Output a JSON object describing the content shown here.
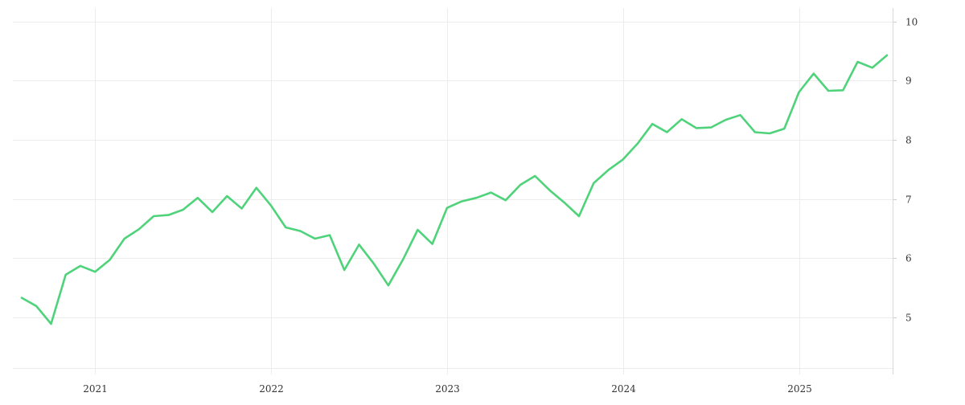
{
  "chart_data": {
    "type": "line",
    "title": "",
    "xlabel": "",
    "ylabel": "",
    "x_tick_labels": [
      "2021",
      "2022",
      "2023",
      "2024",
      "2025"
    ],
    "y_tick_labels": [
      "5",
      "6",
      "7",
      "8",
      "9",
      "10"
    ],
    "y_ticks": [
      5,
      6,
      7,
      8,
      9,
      10
    ],
    "ylim": [
      4.15,
      10.1
    ],
    "xlim": [
      "2020-08",
      "2025-07"
    ],
    "y_axis_side": "right",
    "grid": true,
    "legend": "none",
    "series": [
      {
        "color": "#4fd37a",
        "points": [
          [
            "2020-08",
            5.33
          ],
          [
            "2020-09",
            5.19
          ],
          [
            "2020-10",
            4.89
          ],
          [
            "2020-11",
            5.72
          ],
          [
            "2020-12",
            5.87
          ],
          [
            "2021-01",
            5.77
          ],
          [
            "2021-02",
            5.97
          ],
          [
            "2021-03",
            6.33
          ],
          [
            "2021-04",
            6.49
          ],
          [
            "2021-05",
            6.71
          ],
          [
            "2021-06",
            6.73
          ],
          [
            "2021-07",
            6.82
          ],
          [
            "2021-08",
            7.02
          ],
          [
            "2021-09",
            6.78
          ],
          [
            "2021-10",
            7.05
          ],
          [
            "2021-11",
            6.84
          ],
          [
            "2021-12",
            7.19
          ],
          [
            "2022-01",
            6.89
          ],
          [
            "2022-02",
            6.52
          ],
          [
            "2022-03",
            6.46
          ],
          [
            "2022-04",
            6.33
          ],
          [
            "2022-05",
            6.39
          ],
          [
            "2022-06",
            5.8
          ],
          [
            "2022-07",
            6.23
          ],
          [
            "2022-08",
            5.91
          ],
          [
            "2022-09",
            5.54
          ],
          [
            "2022-10",
            5.98
          ],
          [
            "2022-11",
            6.48
          ],
          [
            "2022-12",
            6.24
          ],
          [
            "2023-01",
            6.85
          ],
          [
            "2023-02",
            6.96
          ],
          [
            "2023-03",
            7.02
          ],
          [
            "2023-04",
            7.11
          ],
          [
            "2023-05",
            6.98
          ],
          [
            "2023-06",
            7.24
          ],
          [
            "2023-07",
            7.39
          ],
          [
            "2023-08",
            7.15
          ],
          [
            "2023-09",
            6.94
          ],
          [
            "2023-10",
            6.71
          ],
          [
            "2023-11",
            7.27
          ],
          [
            "2023-12",
            7.49
          ],
          [
            "2024-01",
            7.67
          ],
          [
            "2024-02",
            7.94
          ],
          [
            "2024-03",
            8.27
          ],
          [
            "2024-04",
            8.13
          ],
          [
            "2024-05",
            8.35
          ],
          [
            "2024-06",
            8.2
          ],
          [
            "2024-07",
            8.21
          ],
          [
            "2024-08",
            8.34
          ],
          [
            "2024-09",
            8.42
          ],
          [
            "2024-10",
            8.13
          ],
          [
            "2024-11",
            8.11
          ],
          [
            "2024-12",
            8.19
          ],
          [
            "2025-01",
            8.81
          ],
          [
            "2025-02",
            9.12
          ],
          [
            "2025-03",
            8.83
          ],
          [
            "2025-04",
            8.84
          ],
          [
            "2025-05",
            9.32
          ],
          [
            "2025-06",
            9.22
          ],
          [
            "2025-07",
            9.43
          ]
        ]
      }
    ]
  }
}
